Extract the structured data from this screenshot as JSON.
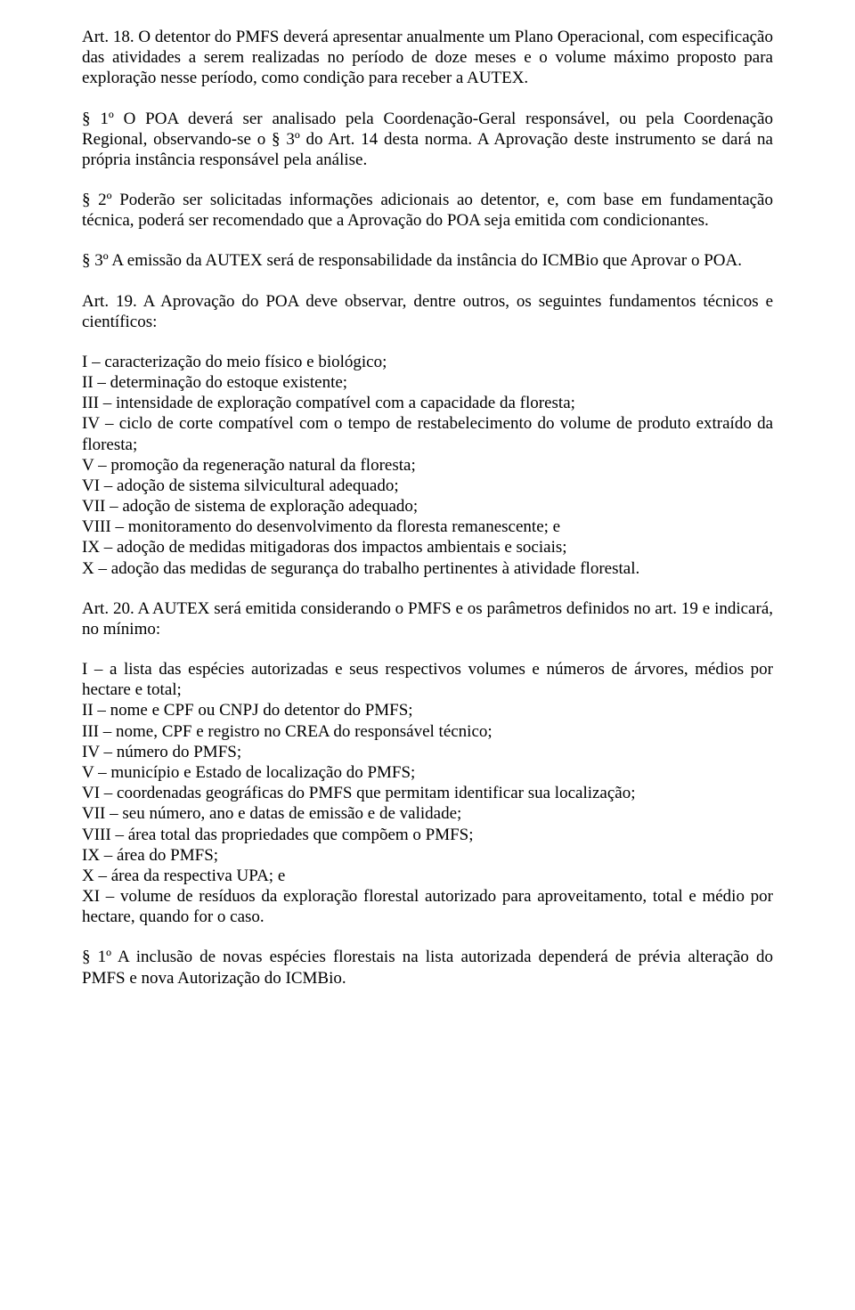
{
  "art18": {
    "text": "Art. 18. O detentor do PMFS deverá apresentar anualmente um Plano Operacional, com especificação das atividades a serem realizadas no período de doze meses e o volume máximo proposto para exploração nesse período, como condição para receber a AUTEX."
  },
  "art18_p1": {
    "text": "§ 1º   O POA deverá ser analisado pela Coordenação-Geral responsável, ou pela Coordenação Regional, observando-se o § 3º do Art. 14 desta norma. A Aprovação deste instrumento se dará na própria instância responsável pela análise."
  },
  "art18_p2": {
    "text": "§ 2º Poderão ser solicitadas informações adicionais ao detentor, e, com base em fundamentação técnica, poderá ser recomendado que a Aprovação do POA seja emitida com condicionantes."
  },
  "art18_p3": {
    "text": "§ 3º A emissão da AUTEX será de responsabilidade da instância do ICMBio que Aprovar o POA."
  },
  "art19": {
    "intro": "Art. 19. A Aprovação do POA deve observar, dentre outros, os seguintes fundamentos técnicos e científicos:",
    "items": [
      "I – caracterização do meio físico e biológico;",
      "II – determinação do estoque existente;",
      "III – intensidade de exploração compatível com a capacidade da floresta;",
      "IV – ciclo de corte compatível com o tempo de restabelecimento do volume de produto extraído da floresta;",
      "V – promoção da regeneração natural da floresta;",
      "VI – adoção de sistema silvicultural adequado;",
      "VII – adoção de sistema de exploração adequado;",
      "VIII – monitoramento do desenvolvimento da floresta remanescente; e",
      "IX – adoção de medidas mitigadoras dos impactos ambientais e sociais;",
      "X – adoção das medidas de segurança do trabalho pertinentes à atividade florestal."
    ]
  },
  "art20": {
    "intro": "Art. 20. A AUTEX será emitida considerando o PMFS e os parâmetros definidos no art. 19 e indicará, no mínimo:",
    "items": [
      "I – a lista das espécies autorizadas e seus respectivos volumes e números de árvores, médios por hectare e total;",
      "II – nome e CPF ou CNPJ do detentor do PMFS;",
      "III – nome, CPF e registro no CREA do responsável técnico;",
      "IV – número do PMFS;",
      "V – município e Estado de localização do PMFS;",
      "VI – coordenadas geográficas do PMFS que permitam identificar sua localização;",
      "VII – seu número, ano e datas de emissão e de validade;",
      "VIII – área total das propriedades que compõem o PMFS;",
      "IX – área do PMFS;",
      "X – área da respectiva UPA; e",
      "XI – volume de resíduos da exploração florestal autorizado para aproveitamento, total e médio por hectare, quando for o caso."
    ]
  },
  "art20_p1": {
    "text": "§ 1º A inclusão de novas espécies florestais na lista autorizada dependerá de prévia alteração do PMFS e nova Autorização do ICMBio."
  }
}
